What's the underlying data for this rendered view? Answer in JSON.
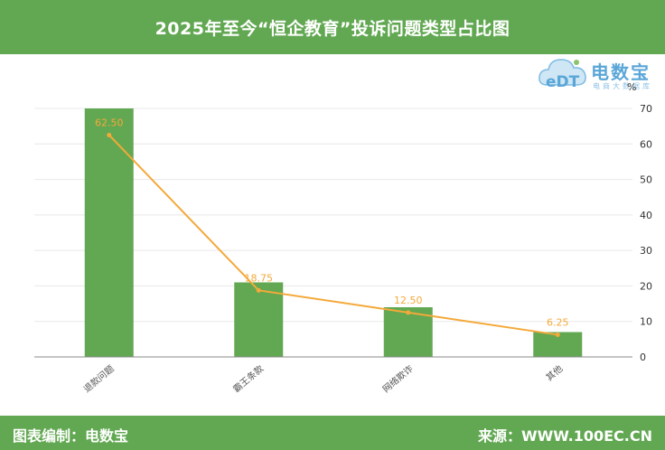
{
  "header": {
    "title": "2025年至今“恒企教育”投诉问题类型占比图"
  },
  "footer": {
    "left": "图表编制：电数宝",
    "right": "来源：WWW.100EC.CN"
  },
  "logo": {
    "name": "电数宝",
    "sub": "电商大数据库",
    "mark": "eDT"
  },
  "colors": {
    "bar": "#62a852",
    "line": "#f4a93a",
    "header": "#62a852"
  },
  "chart_data": {
    "type": "bar",
    "categories": [
      "退款问题",
      "霸王条款",
      "网络欺诈",
      "其他"
    ],
    "series": [
      {
        "values": [
          70,
          21,
          14,
          7
        ],
        "type": "bar"
      },
      {
        "values": [
          62.5,
          18.75,
          12.5,
          6.25
        ],
        "type": "line",
        "labels": [
          "62.50",
          "18.75",
          "12.50",
          "6.25"
        ]
      }
    ],
    "ylabel": "%",
    "ylim": [
      0,
      70
    ],
    "yticks": [
      0,
      10,
      20,
      30,
      40,
      50,
      60,
      70
    ],
    "y_axis_side": "right",
    "grid": true
  }
}
